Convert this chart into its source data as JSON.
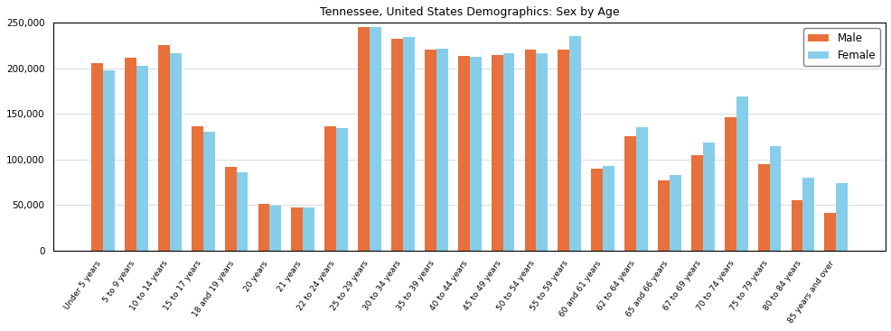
{
  "title": "Tennessee, United States Demographics: Sex by Age",
  "categories": [
    "Under 5 years",
    "5 to 9 years",
    "10 to 14 years",
    "15 to 17 years",
    "18 and 19 years",
    "20 years",
    "21 years",
    "22 to 24 years",
    "25 to 29 years",
    "30 to 34 years",
    "35 to 39 years",
    "40 to 44 years",
    "45 to 49 years",
    "50 to 54 years",
    "55 to 59 years",
    "60 and 61 years",
    "62 to 64 years",
    "65 and 66 years",
    "67 to 69 years",
    "70 to 74 years",
    "75 to 79 years",
    "80 to 84 years",
    "85 years and over"
  ],
  "male": [
    206000,
    212000,
    226000,
    136000,
    92000,
    51000,
    47000,
    136000,
    245000,
    232000,
    221000,
    214000,
    215000,
    221000,
    221000,
    90000,
    126000,
    77000,
    105000,
    146000,
    95000,
    55000,
    41000
  ],
  "female": [
    198000,
    203000,
    217000,
    130000,
    86000,
    49000,
    47000,
    134000,
    245000,
    234000,
    222000,
    213000,
    217000,
    217000,
    235000,
    93000,
    135000,
    83000,
    119000,
    169000,
    115000,
    80000,
    74000
  ],
  "male_color": "#E8703A",
  "female_color": "#87CEEB",
  "ylim": [
    0,
    250000
  ],
  "yticks": [
    0,
    50000,
    100000,
    150000,
    200000,
    250000
  ],
  "ytick_labels": [
    "0",
    "50,000",
    "100,000",
    "150,000",
    "200,000",
    "250,000"
  ],
  "figsize": [
    9.87,
    3.67
  ],
  "dpi": 100
}
